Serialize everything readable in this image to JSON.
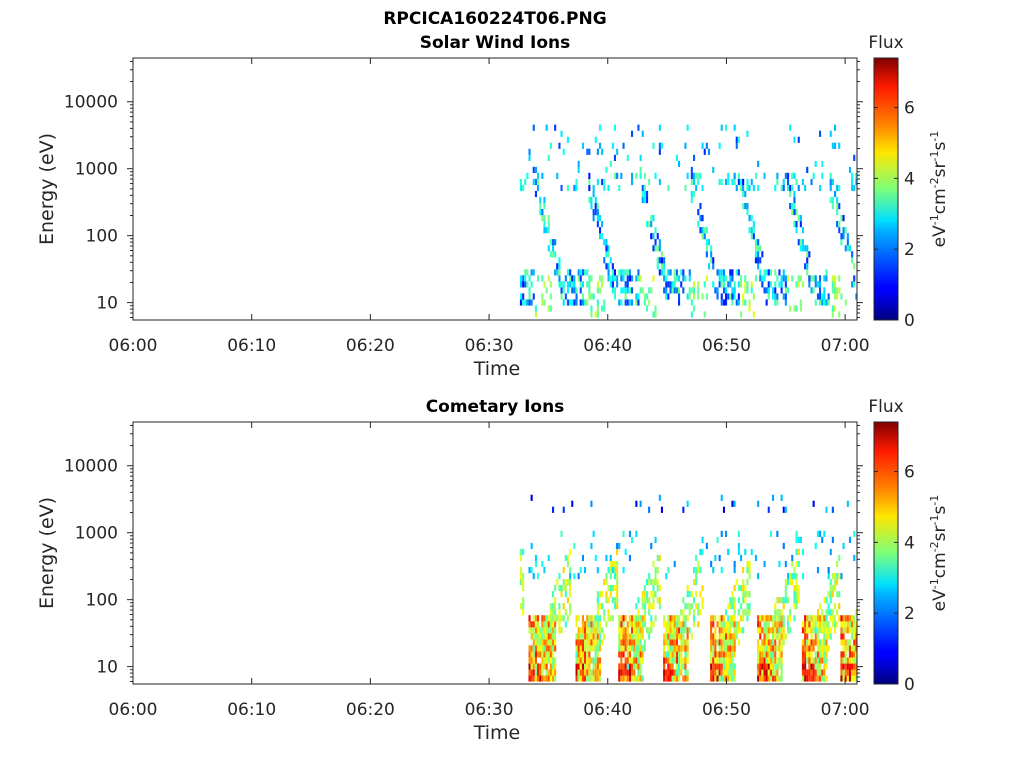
{
  "figure": {
    "title": "RPCICA160224T06.PNG"
  },
  "chart_data": [
    {
      "type": "heatmap",
      "title": "Solar Wind Ions",
      "xlabel": "Time",
      "ylabel": "Energy (eV)",
      "x_tick_labels": [
        "06:00",
        "06:10",
        "06:20",
        "06:30",
        "06:40",
        "06:50",
        "07:00"
      ],
      "x_range_minutes": [
        0,
        61
      ],
      "y_scale": "log",
      "y_range": [
        5.5,
        45000
      ],
      "y_tick_labels": [
        "10",
        "100",
        "1000",
        "10000"
      ],
      "y_ticks": [
        10,
        100,
        1000,
        10000
      ],
      "colorbar": {
        "label_top": "Flux",
        "label": "eV-1cm-2sr-1s-1",
        "range": [
          0,
          7.4
        ],
        "ticks": [
          0,
          2,
          4,
          6
        ],
        "tick_labels": [
          "0",
          "2",
          "4",
          "6"
        ],
        "colormap": "jet"
      },
      "data_start_minute": 32.6,
      "cycle_starts_minutes": [
        33.8,
        38.2,
        42.6,
        46.9,
        51.0,
        55.0,
        58.6
      ],
      "cells": [
        {
          "t": 33.8,
          "e": 20,
          "v": 3.6
        },
        {
          "t": 34.0,
          "e": 25,
          "v": 3.4
        },
        {
          "t": 34.2,
          "e": 45,
          "v": 0.8
        },
        {
          "t": 34.4,
          "e": 100,
          "v": 1.0
        },
        {
          "t": 33.9,
          "e": 300,
          "v": 2.8
        },
        {
          "t": 34.1,
          "e": 600,
          "v": 2.4
        },
        {
          "t": 36.5,
          "e": 15,
          "v": 3.2
        },
        {
          "t": 36.8,
          "e": 30,
          "v": 1.4
        },
        {
          "t": 37.2,
          "e": 70,
          "v": 2.5
        },
        {
          "t": 40.0,
          "e": 25,
          "v": 3.6
        },
        {
          "t": 40.3,
          "e": 60,
          "v": 3.0
        },
        {
          "t": 40.6,
          "e": 150,
          "v": 2.6
        },
        {
          "t": 44.0,
          "e": 15,
          "v": 3.5
        },
        {
          "t": 44.4,
          "e": 30,
          "v": 1.0
        },
        {
          "t": 48.0,
          "e": 20,
          "v": 3.6
        },
        {
          "t": 52.0,
          "e": 18,
          "v": 3.8
        },
        {
          "t": 56.0,
          "e": 20,
          "v": 3.5
        },
        {
          "t": 59.8,
          "e": 22,
          "v": 3.6
        }
      ]
    },
    {
      "type": "heatmap",
      "title": "Cometary Ions",
      "xlabel": "Time",
      "ylabel": "Energy (eV)",
      "x_tick_labels": [
        "06:00",
        "06:10",
        "06:20",
        "06:30",
        "06:40",
        "06:50",
        "07:00"
      ],
      "x_range_minutes": [
        0,
        61
      ],
      "y_scale": "log",
      "y_range": [
        5.5,
        45000
      ],
      "y_tick_labels": [
        "10",
        "100",
        "1000",
        "10000"
      ],
      "y_ticks": [
        10,
        100,
        1000,
        10000
      ],
      "colorbar": {
        "label_top": "Flux",
        "label": "eV-1cm-2sr-1s-1",
        "range": [
          0,
          7.4
        ],
        "ticks": [
          0,
          2,
          4,
          6
        ],
        "tick_labels": [
          "0",
          "2",
          "4",
          "6"
        ],
        "colormap": "jet"
      },
      "data_start_minute": 32.6,
      "cycle_starts_minutes": [
        33.3,
        37.2,
        40.8,
        44.5,
        48.5,
        52.5,
        56.3,
        59.5
      ],
      "cells": [
        {
          "t": 34.0,
          "e": 10,
          "v": 6.2
        },
        {
          "t": 34.3,
          "e": 20,
          "v": 5.5
        },
        {
          "t": 34.6,
          "e": 40,
          "v": 4.2
        },
        {
          "t": 35.0,
          "e": 120,
          "v": 3.2
        },
        {
          "t": 38.0,
          "e": 8,
          "v": 0.8
        },
        {
          "t": 40.2,
          "e": 15,
          "v": 5.8
        },
        {
          "t": 40.6,
          "e": 30,
          "v": 5.0
        },
        {
          "t": 41.4,
          "e": 150,
          "v": 3.8
        },
        {
          "t": 46.0,
          "e": 12,
          "v": 5.6
        },
        {
          "t": 49.2,
          "e": 15,
          "v": 5.4
        },
        {
          "t": 53.4,
          "e": 14,
          "v": 5.6
        },
        {
          "t": 57.0,
          "e": 14,
          "v": 5.3
        },
        {
          "t": 60.0,
          "e": 12,
          "v": 5.2
        }
      ]
    }
  ]
}
